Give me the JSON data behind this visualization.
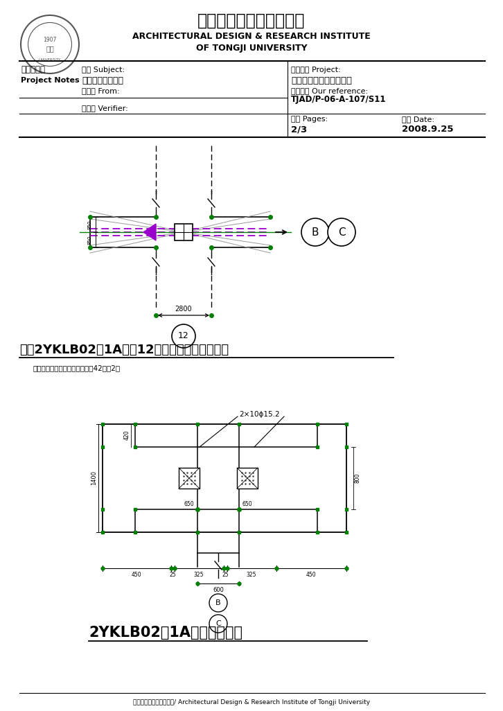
{
  "title_cn": "同济大学建筑设计研究院",
  "title_en1": "ARCHITECTURAL DESIGN & RESEARCH INSTITUTE",
  "title_en2": "OF TONGJI UNIVERSITY",
  "field1_label": "工程联系单",
  "field1_sub": "主题 Subject:",
  "field1_val": "预应力梁等的修改",
  "field1_label2": "Project Notes",
  "field2_label": "发件人 From:",
  "field3_label": "验证人 Verifier:",
  "field_right1_label": "工程名称 Project:",
  "field_right1_val": "安徽省古生物化石博物馆",
  "field_right2_label": "档案编号 Our reference:",
  "field_right2_val": "TJAD/P-06-A-107/S11",
  "field_right3_label": "页数 Pages:",
  "field_right3_val": "2/3",
  "field_right4_label": "日期 Date:",
  "field_right4_val": "2008.9.25",
  "diagram1_title": "二层2YKLB02（1A）在12轴处锚固端加腋布置图",
  "diagram1_note": "（注：共两道梁，加腋做法见图42节点2）",
  "diagram1_dim": "2800",
  "diagram1_label": "12",
  "diagram2_title": "2YKLB02（1A）锚固端构造",
  "diagram2_annotation": "2×10ϕ15.2",
  "diagram2_dim1": "450",
  "diagram2_dim2": "25",
  "diagram2_dim3": "325",
  "diagram2_dim_total": "600",
  "diagram2_dim_h1": "1400",
  "diagram2_dim_h2": "420",
  "diagram2_dim_h3": "800",
  "diagram2_dim_side": "650",
  "diagram2_dim_mid": "650",
  "footer": "同济大学建筑设计研究院/ Architectural Design & Research Institute of Tongji University",
  "bg_color": "#ffffff",
  "line_color": "#000000",
  "green_color": "#008000",
  "purple_color": "#9900cc",
  "gray_color": "#999999"
}
